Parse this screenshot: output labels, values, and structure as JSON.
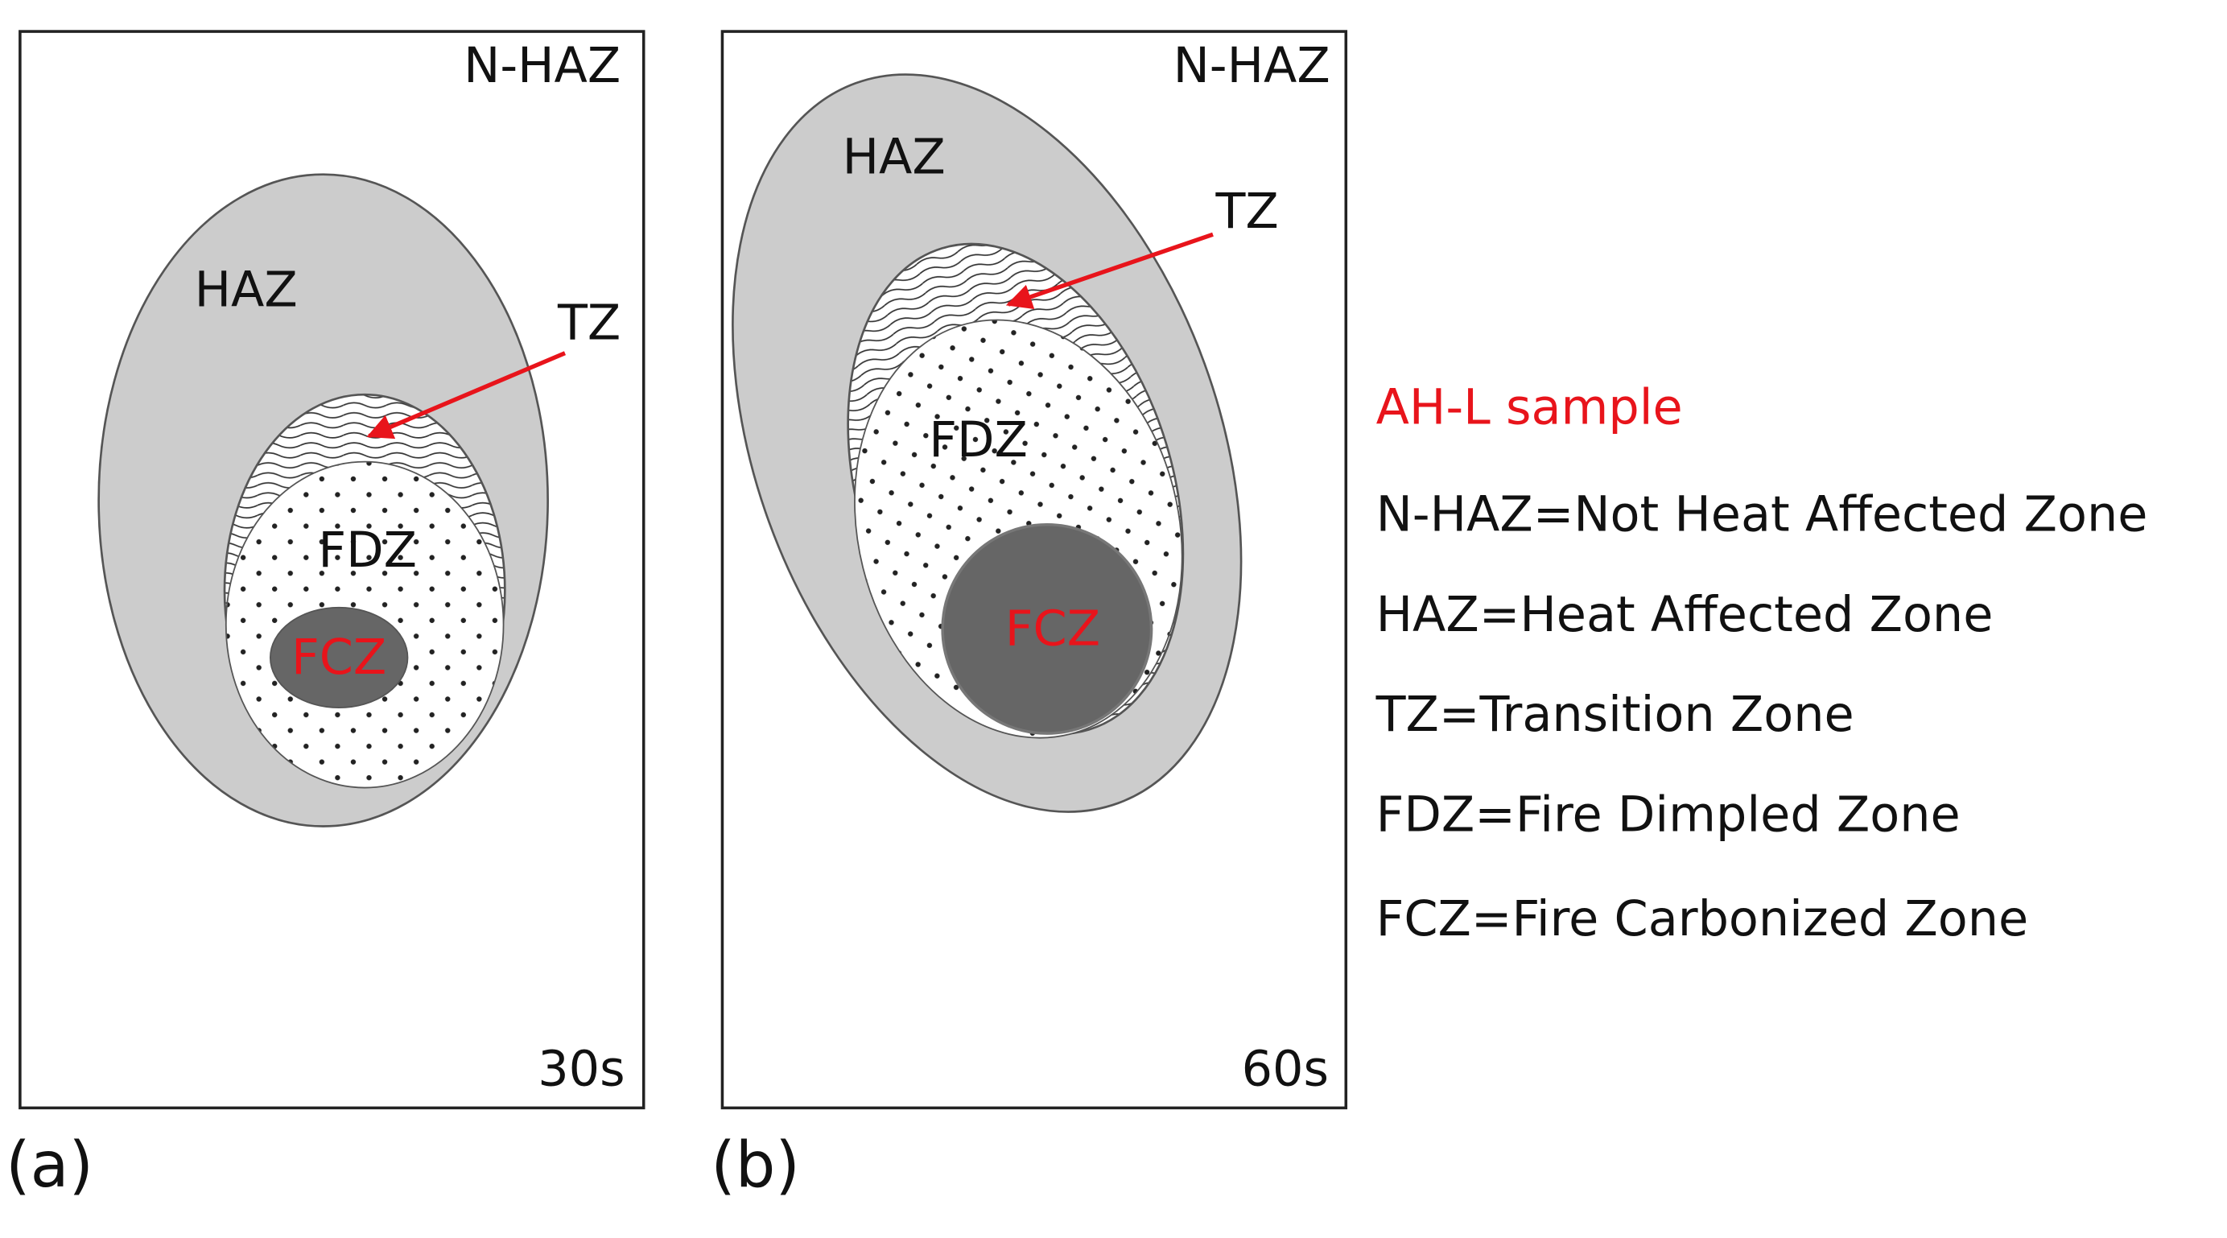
{
  "panels": [
    {
      "corner": "N-HAZ",
      "haz": "HAZ",
      "tz": "TZ",
      "fdz": "FDZ",
      "fcz": "FCZ",
      "time": "30s",
      "caption": "(a)"
    },
    {
      "corner": "N-HAZ",
      "haz": "HAZ",
      "tz": "TZ",
      "fdz": "FDZ",
      "fcz": "FCZ",
      "time": "60s",
      "caption": "(b)"
    }
  ],
  "legend": {
    "title": "AH-L sample",
    "items": [
      "N-HAZ=Not Heat Affected Zone",
      "HAZ=Heat Affected Zone",
      "TZ=Transition Zone",
      "FDZ=Fire Dimpled Zone",
      "FCZ=Fire Carbonized Zone"
    ]
  }
}
